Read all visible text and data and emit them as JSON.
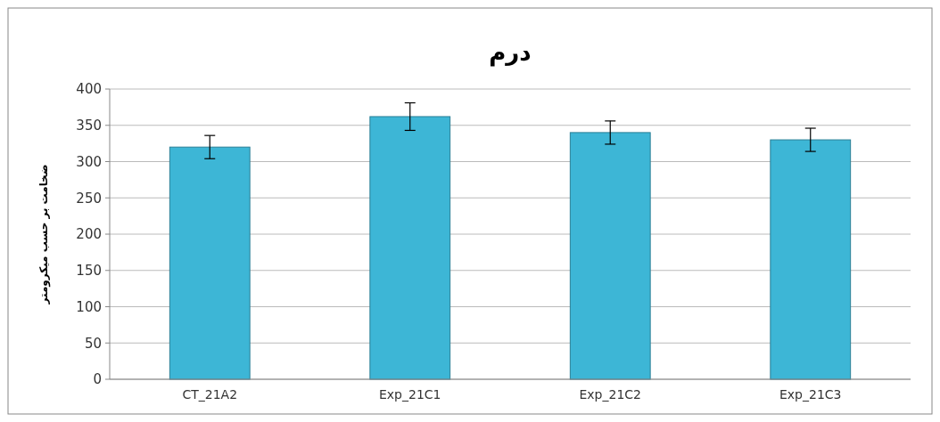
{
  "chart_data": {
    "type": "bar",
    "title": "درم",
    "ylabel": "ضخامت بر حسب میکرومتر",
    "categories": [
      "CT_21A2",
      "Exp_21C1",
      "Exp_21C2",
      "Exp_21C3"
    ],
    "values": [
      320,
      362,
      340,
      330
    ],
    "errors": [
      16,
      19,
      16,
      16
    ],
    "color": "#3db6d6",
    "ylim": [
      0,
      400
    ],
    "yticks": [
      0,
      50,
      100,
      150,
      200,
      250,
      300,
      350,
      400
    ],
    "grid": "y"
  }
}
